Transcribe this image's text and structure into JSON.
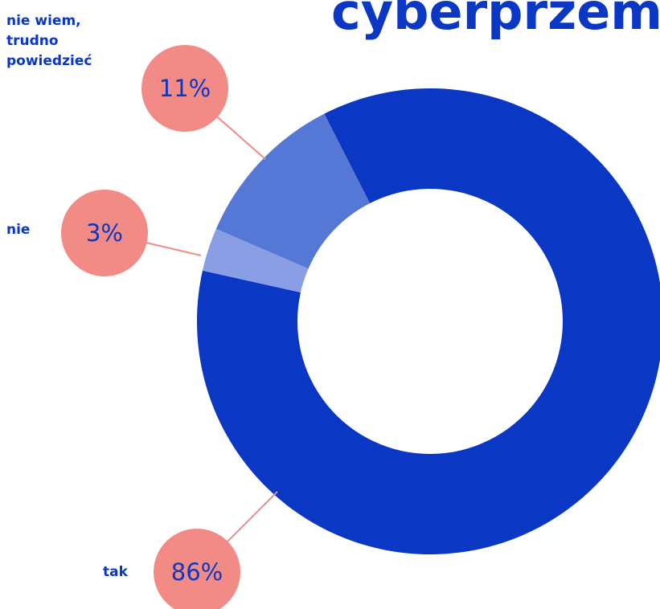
{
  "chart_data": {
    "type": "donut",
    "title": "cyberprzemocy",
    "categories": [
      "tak",
      "nie",
      "nie wiem, trudno powiedzieć"
    ],
    "values": [
      86,
      3,
      11
    ],
    "value_labels": [
      "86%",
      "3%",
      "11%"
    ],
    "colors": [
      "#0a37c4",
      "#8a9ee5",
      "#5577d6"
    ],
    "label_color": "#f28b85"
  }
}
